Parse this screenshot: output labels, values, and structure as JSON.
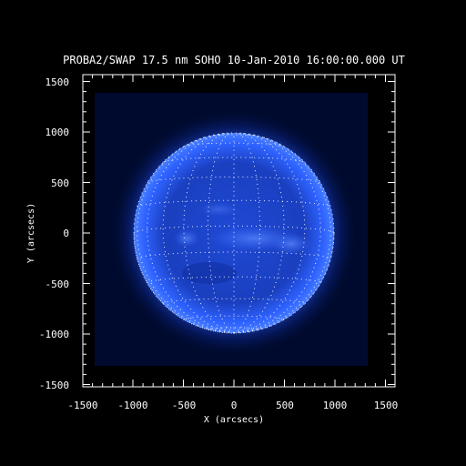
{
  "title": "PROBA2/SWAP 17.5 nm SOHO 10-Jan-2010 16:00:00.000 UT",
  "xlabel": "X (arcsecs)",
  "ylabel": "Y (arcsecs)",
  "x_ticks": [
    "-1500",
    "-1000",
    "-500",
    "0",
    "500",
    "1000",
    "1500"
  ],
  "y_ticks": [
    "-1500",
    "-1000",
    "-500",
    "0",
    "500",
    "1000",
    "1500"
  ],
  "colors": {
    "background": "#000000",
    "frame": "#ffffff",
    "solar_disk": "#3a6cff",
    "corona": "#1c3fc8",
    "grid": "#ffffff"
  },
  "icons": [
    "solar-disk-image",
    "heliographic-grid-overlay"
  ]
}
